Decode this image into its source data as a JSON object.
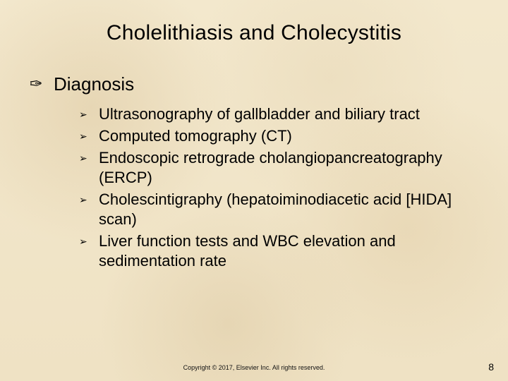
{
  "title": "Cholelithiasis and Cholecystitis",
  "level1": {
    "bullet": "✑",
    "text": "Diagnosis"
  },
  "level2_bullet": "➢",
  "items": [
    "Ultrasonography of gallbladder and biliary tract",
    "Computed tomography (CT)",
    "Endoscopic retrograde cholangiopancreatography (ERCP)",
    "Cholescintigraphy (hepatoiminodiacetic acid [HIDA] scan)",
    "Liver function tests and WBC elevation and sedimentation rate"
  ],
  "footer": "Copyright © 2017, Elsevier Inc. All rights reserved.",
  "page_number": "8"
}
